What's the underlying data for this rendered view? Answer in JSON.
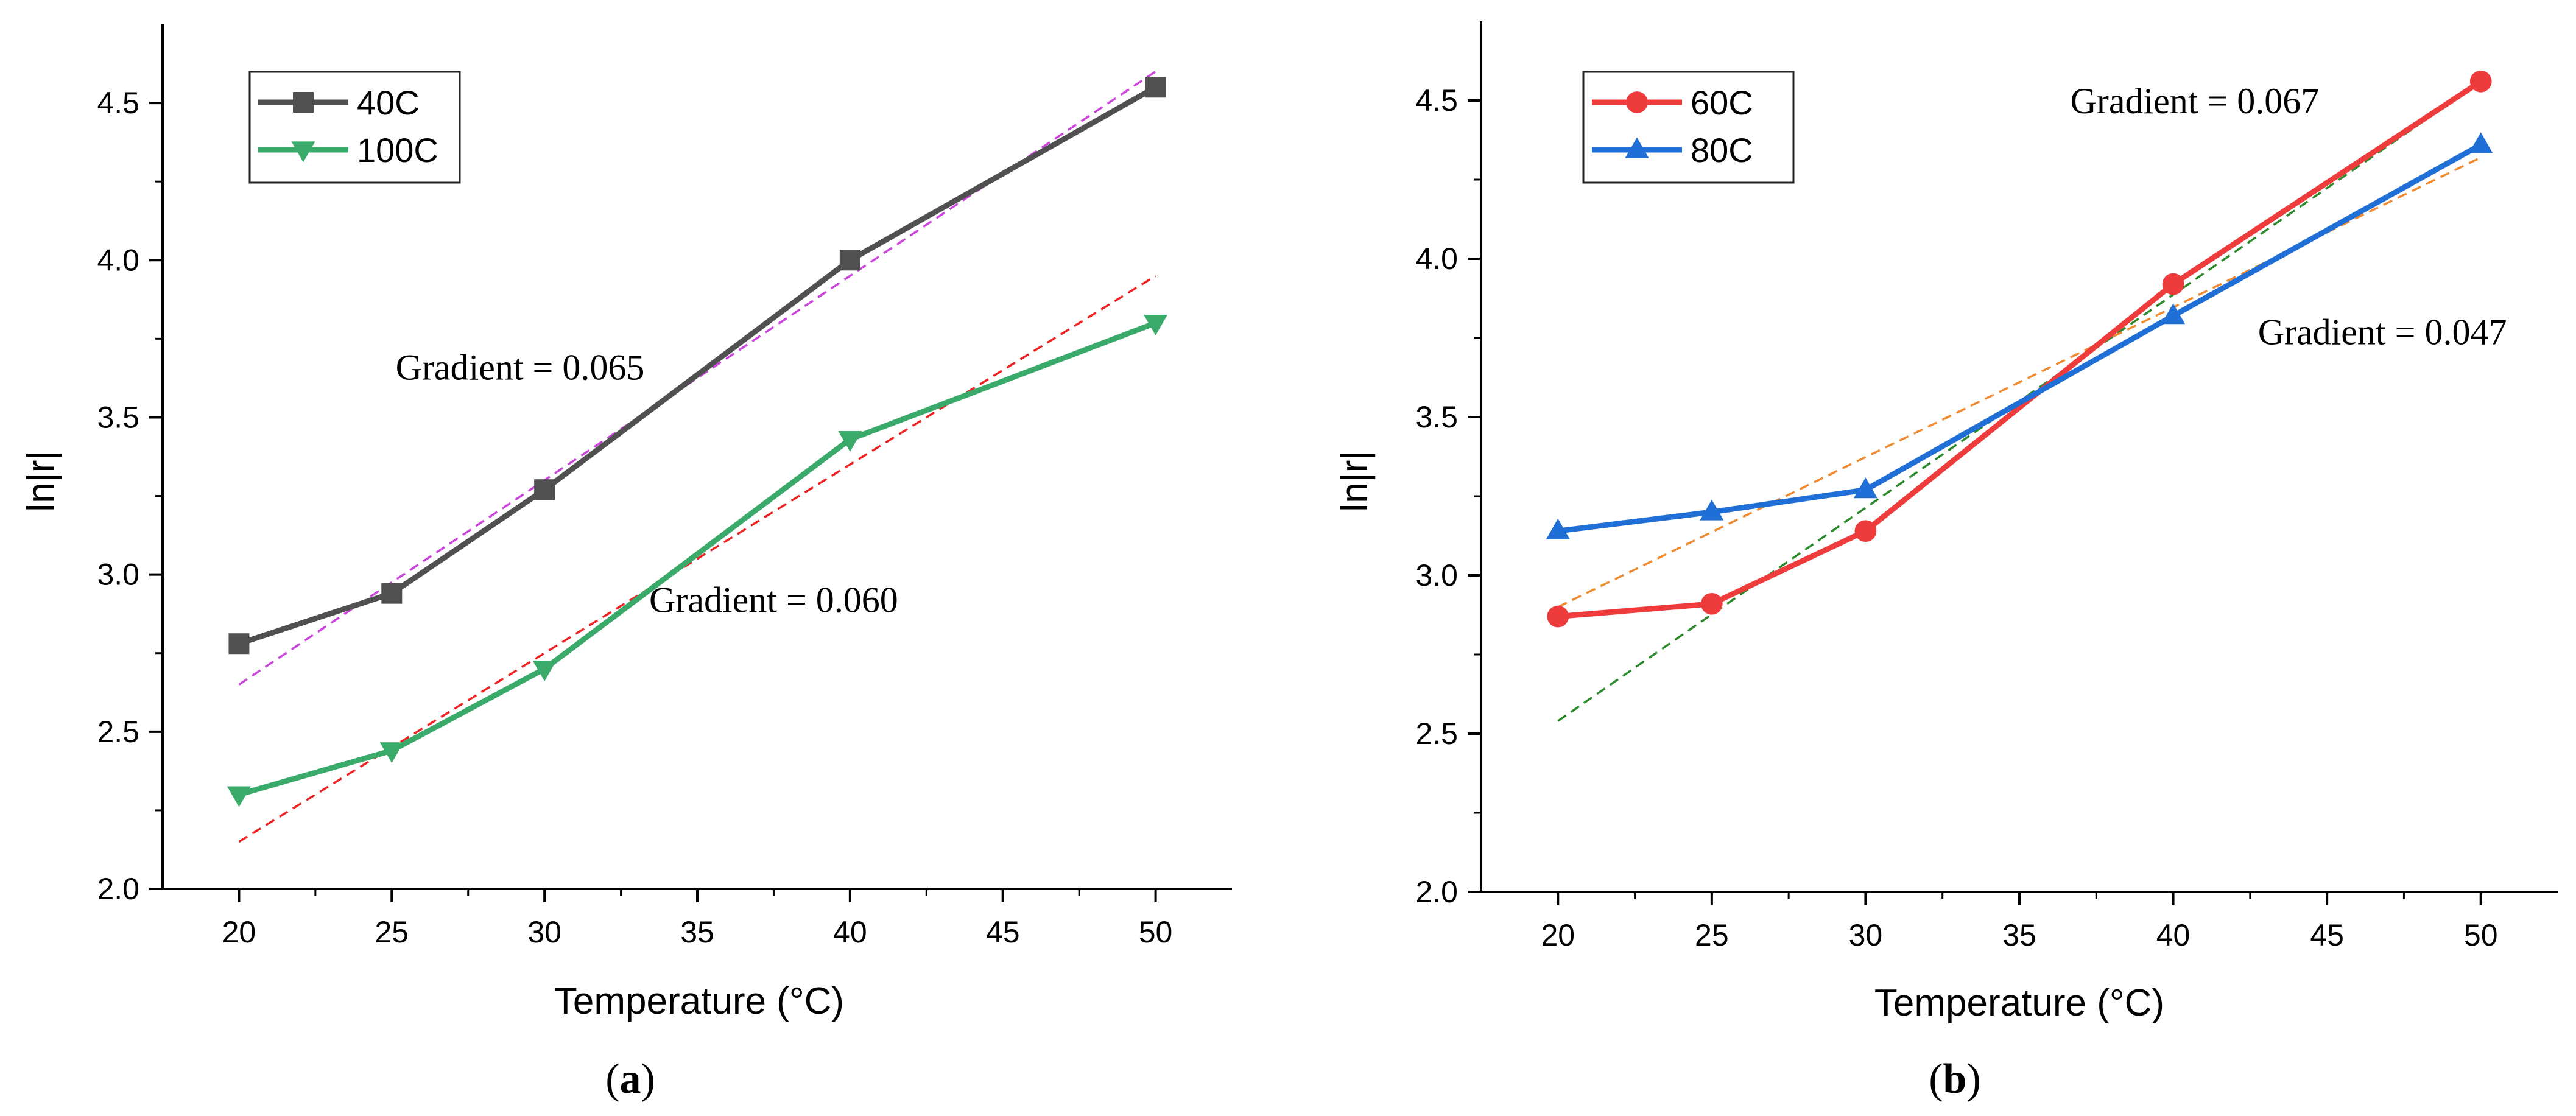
{
  "chart_data": [
    {
      "type": "line",
      "panel_label": "a",
      "xlabel": "Temperature (°C)",
      "ylabel": "ln|r|",
      "xlim": [
        17.5,
        52.5
      ],
      "ylim": [
        2.0,
        4.75
      ],
      "xticks": [
        20,
        25,
        30,
        35,
        40,
        45,
        50
      ],
      "xtick_labels": [
        "20",
        "25",
        "30",
        "35",
        "40",
        "45",
        "50"
      ],
      "yticks": [
        2.0,
        2.5,
        3.0,
        3.5,
        4.0,
        4.5
      ],
      "ytick_labels": [
        "2.0",
        "2.5",
        "3.0",
        "3.5",
        "4.0",
        "4.5"
      ],
      "legend_position": "top-left",
      "series": [
        {
          "name": "40C",
          "color": "#505050",
          "marker": "square",
          "x": [
            20,
            25,
            30,
            40,
            50
          ],
          "y": [
            2.78,
            2.94,
            3.27,
            4.0,
            4.55
          ]
        },
        {
          "name": "100C",
          "color": "#3aaa6a",
          "marker": "triangle-down",
          "x": [
            20,
            25,
            30,
            40,
            50
          ],
          "y": [
            2.3,
            2.44,
            2.7,
            3.43,
            3.8
          ]
        }
      ],
      "fit_lines": [
        {
          "color": "#cc44dd",
          "x": [
            20,
            50
          ],
          "y": [
            2.65,
            4.6
          ]
        },
        {
          "color": "#ee2222",
          "x": [
            20,
            50
          ],
          "y": [
            2.15,
            3.95
          ]
        }
      ],
      "annotations": [
        {
          "text": "Gradient = 0.065",
          "x": 29.2,
          "y": 3.62
        },
        {
          "text": "Gradient = 0.060",
          "x": 37.5,
          "y": 2.88
        }
      ]
    },
    {
      "type": "line",
      "panel_label": "b",
      "xlabel": "Temperature (°C)",
      "ylabel": "ln|r|",
      "xlim": [
        17.5,
        52.5
      ],
      "ylim": [
        2.0,
        4.75
      ],
      "xticks": [
        20,
        25,
        30,
        35,
        40,
        45,
        50
      ],
      "xtick_labels": [
        "20",
        "25",
        "30",
        "35",
        "40",
        "45",
        "50"
      ],
      "yticks": [
        2.0,
        2.5,
        3.0,
        3.5,
        4.0,
        4.5
      ],
      "ytick_labels": [
        "2.0",
        "2.5",
        "3.0",
        "3.5",
        "4.0",
        "4.5"
      ],
      "legend_position": "top-left",
      "series": [
        {
          "name": "60C",
          "color": "#ee3b3b",
          "marker": "circle",
          "x": [
            20,
            25,
            30,
            40,
            50
          ],
          "y": [
            2.87,
            2.91,
            3.14,
            3.92,
            4.56
          ]
        },
        {
          "name": "80C",
          "color": "#1f6fd6",
          "marker": "triangle-up",
          "x": [
            20,
            25,
            30,
            40,
            50
          ],
          "y": [
            3.14,
            3.2,
            3.27,
            3.82,
            4.36
          ]
        }
      ],
      "fit_lines": [
        {
          "color": "#2a8a2a",
          "x": [
            20,
            50
          ],
          "y": [
            2.54,
            4.56
          ]
        },
        {
          "color": "#f08a30",
          "x": [
            20,
            50
          ],
          "y": [
            2.9,
            4.32
          ]
        }
      ],
      "annotations": [
        {
          "text": "Gradient = 0.067",
          "x": 40.7,
          "y": 4.46
        },
        {
          "text": "Gradient = 0.047",
          "x": 46.8,
          "y": 3.73
        }
      ]
    }
  ]
}
